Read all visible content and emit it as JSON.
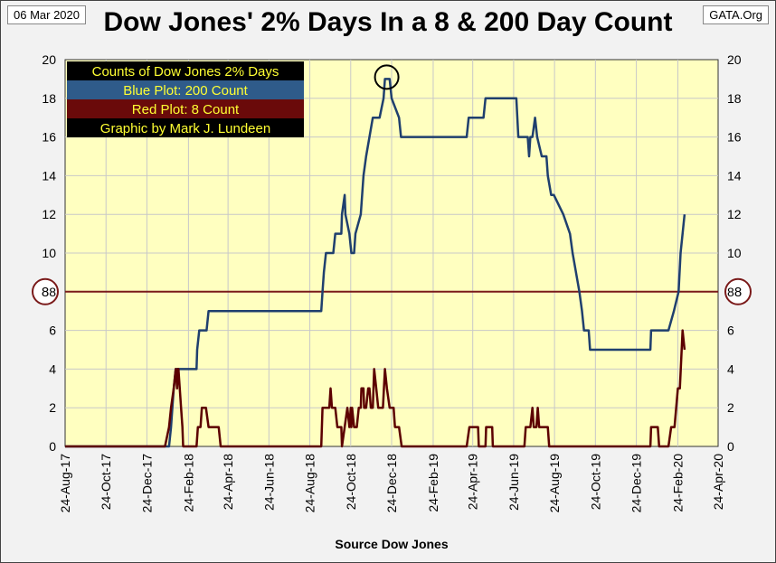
{
  "header": {
    "date": "06 Mar 2020",
    "source": "GATA.Org"
  },
  "chart_data": {
    "type": "line",
    "title": "Dow Jones' 2% Days In a 8 & 200 Day Count",
    "xlabel": "Source Dow Jones",
    "ylabel": "",
    "ylim": [
      0,
      20
    ],
    "yticks": [
      0,
      2,
      4,
      6,
      8,
      10,
      12,
      14,
      16,
      18,
      20
    ],
    "xticks": [
      "24-Aug-17",
      "24-Oct-17",
      "24-Dec-17",
      "24-Feb-18",
      "24-Apr-18",
      "24-Jun-18",
      "24-Aug-18",
      "24-Oct-18",
      "24-Dec-18",
      "24-Feb-19",
      "24-Apr-19",
      "24-Jun-19",
      "24-Aug-19",
      "24-Oct-19",
      "24-Dec-19",
      "24-Feb-20",
      "24-Apr-20"
    ],
    "xlim": [
      "2017-08-24",
      "2020-04-24"
    ],
    "grid": true,
    "legend": [
      {
        "text": "Counts of Dow Jones 2% Days",
        "bg": "#000000",
        "fg": "#ffff33"
      },
      {
        "text": "Blue Plot: 200 Count",
        "bg": "#2f5b8a",
        "fg": "#ffff33"
      },
      {
        "text": "Red Plot:     8 Count",
        "bg": "#6a0a0a",
        "fg": "#ffff33"
      },
      {
        "text": "Graphic by Mark J. Lundeen",
        "bg": "#000000",
        "fg": "#ffff33"
      }
    ],
    "reference_line": {
      "value": 8,
      "label": "8",
      "color": "#7a1a1a"
    },
    "colors": {
      "plot_bg": "#ffffc0",
      "blue": "#1f3f6e",
      "red": "#5c0000",
      "grid": "#c8c8c8"
    },
    "series": [
      {
        "color": "#1f3f6e",
        "points": [
          [
            "2017-08-24",
            0
          ],
          [
            "2018-01-26",
            0
          ],
          [
            "2018-01-29",
            1
          ],
          [
            "2018-02-02",
            3
          ],
          [
            "2018-02-05",
            4
          ],
          [
            "2018-03-08",
            4
          ],
          [
            "2018-03-09",
            5
          ],
          [
            "2018-03-12",
            6
          ],
          [
            "2018-03-23",
            6
          ],
          [
            "2018-03-26",
            7
          ],
          [
            "2018-09-07",
            7
          ],
          [
            "2018-09-10",
            7
          ],
          [
            "2018-09-12",
            8
          ],
          [
            "2018-09-14",
            9
          ],
          [
            "2018-09-17",
            10
          ],
          [
            "2018-09-28",
            10
          ],
          [
            "2018-10-01",
            11
          ],
          [
            "2018-10-10",
            11
          ],
          [
            "2018-10-11",
            12
          ],
          [
            "2018-10-15",
            13
          ],
          [
            "2018-10-16",
            12
          ],
          [
            "2018-10-22",
            11
          ],
          [
            "2018-10-25",
            10
          ],
          [
            "2018-10-29",
            10
          ],
          [
            "2018-10-31",
            11
          ],
          [
            "2018-11-08",
            12
          ],
          [
            "2018-11-12",
            14
          ],
          [
            "2018-11-16",
            15
          ],
          [
            "2018-11-21",
            16
          ],
          [
            "2018-11-26",
            17
          ],
          [
            "2018-12-06",
            17
          ],
          [
            "2018-12-12",
            18
          ],
          [
            "2018-12-14",
            19
          ],
          [
            "2018-12-21",
            19
          ],
          [
            "2018-12-24",
            18
          ],
          [
            "2019-01-04",
            17
          ],
          [
            "2019-01-07",
            16
          ],
          [
            "2019-04-15",
            16
          ],
          [
            "2019-04-18",
            17
          ],
          [
            "2019-05-10",
            17
          ],
          [
            "2019-05-13",
            18
          ],
          [
            "2019-06-28",
            18
          ],
          [
            "2019-07-01",
            16
          ],
          [
            "2019-07-15",
            16
          ],
          [
            "2019-07-17",
            15
          ],
          [
            "2019-07-19",
            16
          ],
          [
            "2019-07-22",
            16
          ],
          [
            "2019-07-26",
            17
          ],
          [
            "2019-07-29",
            16
          ],
          [
            "2019-08-05",
            15
          ],
          [
            "2019-08-12",
            15
          ],
          [
            "2019-08-14",
            14
          ],
          [
            "2019-08-19",
            13
          ],
          [
            "2019-08-23",
            13
          ],
          [
            "2019-09-06",
            12
          ],
          [
            "2019-09-16",
            11
          ],
          [
            "2019-09-20",
            10
          ],
          [
            "2019-09-30",
            8
          ],
          [
            "2019-10-04",
            7
          ],
          [
            "2019-10-07",
            6
          ],
          [
            "2019-10-14",
            6
          ],
          [
            "2019-10-16",
            5
          ],
          [
            "2020-01-14",
            5
          ],
          [
            "2020-01-15",
            6
          ],
          [
            "2020-02-10",
            6
          ],
          [
            "2020-02-18",
            7
          ],
          [
            "2020-02-25",
            8
          ],
          [
            "2020-02-28",
            10
          ],
          [
            "2020-03-02",
            11
          ],
          [
            "2020-03-05",
            12
          ]
        ]
      },
      {
        "color": "#5c0000",
        "points": [
          [
            "2017-08-24",
            0
          ],
          [
            "2018-01-20",
            0
          ],
          [
            "2018-01-26",
            1
          ],
          [
            "2018-01-29",
            2
          ],
          [
            "2018-02-02",
            3
          ],
          [
            "2018-02-05",
            4
          ],
          [
            "2018-02-07",
            3
          ],
          [
            "2018-02-08",
            4
          ],
          [
            "2018-02-09",
            4
          ],
          [
            "2018-02-13",
            2
          ],
          [
            "2018-02-15",
            1
          ],
          [
            "2018-02-16",
            0
          ],
          [
            "2018-03-08",
            0
          ],
          [
            "2018-03-10",
            1
          ],
          [
            "2018-03-14",
            1
          ],
          [
            "2018-03-16",
            2
          ],
          [
            "2018-03-22",
            2
          ],
          [
            "2018-03-26",
            1
          ],
          [
            "2018-04-04",
            1
          ],
          [
            "2018-04-10",
            1
          ],
          [
            "2018-04-13",
            0
          ],
          [
            "2018-09-10",
            0
          ],
          [
            "2018-09-12",
            2
          ],
          [
            "2018-09-22",
            2
          ],
          [
            "2018-09-24",
            3
          ],
          [
            "2018-09-26",
            2
          ],
          [
            "2018-10-01",
            2
          ],
          [
            "2018-10-04",
            1
          ],
          [
            "2018-10-10",
            1
          ],
          [
            "2018-10-11",
            0
          ],
          [
            "2018-10-15",
            1
          ],
          [
            "2018-10-19",
            2
          ],
          [
            "2018-10-22",
            1
          ],
          [
            "2018-10-24",
            2
          ],
          [
            "2018-10-25",
            1
          ],
          [
            "2018-10-26",
            2
          ],
          [
            "2018-10-29",
            1
          ],
          [
            "2018-11-02",
            1
          ],
          [
            "2018-11-05",
            2
          ],
          [
            "2018-11-08",
            2
          ],
          [
            "2018-11-09",
            3
          ],
          [
            "2018-11-12",
            3
          ],
          [
            "2018-11-13",
            2
          ],
          [
            "2018-11-16",
            2
          ],
          [
            "2018-11-19",
            3
          ],
          [
            "2018-11-21",
            3
          ],
          [
            "2018-11-23",
            2
          ],
          [
            "2018-11-26",
            2
          ],
          [
            "2018-11-28",
            4
          ],
          [
            "2018-12-01",
            3
          ],
          [
            "2018-12-04",
            2
          ],
          [
            "2018-12-07",
            2
          ],
          [
            "2018-12-11",
            2
          ],
          [
            "2018-12-14",
            4
          ],
          [
            "2018-12-17",
            3
          ],
          [
            "2018-12-21",
            2
          ],
          [
            "2018-12-27",
            2
          ],
          [
            "2018-12-29",
            1
          ],
          [
            "2019-01-04",
            1
          ],
          [
            "2019-01-08",
            0
          ],
          [
            "2019-04-15",
            0
          ],
          [
            "2019-04-19",
            1
          ],
          [
            "2019-05-02",
            1
          ],
          [
            "2019-05-03",
            0
          ],
          [
            "2019-05-13",
            0
          ],
          [
            "2019-05-14",
            1
          ],
          [
            "2019-05-23",
            1
          ],
          [
            "2019-05-24",
            0
          ],
          [
            "2019-07-10",
            0
          ],
          [
            "2019-07-12",
            1
          ],
          [
            "2019-07-19",
            1
          ],
          [
            "2019-07-22",
            2
          ],
          [
            "2019-07-24",
            1
          ],
          [
            "2019-07-28",
            1
          ],
          [
            "2019-07-30",
            2
          ],
          [
            "2019-08-01",
            1
          ],
          [
            "2019-08-14",
            1
          ],
          [
            "2019-08-16",
            0
          ],
          [
            "2020-01-14",
            0
          ],
          [
            "2020-01-15",
            1
          ],
          [
            "2020-01-25",
            1
          ],
          [
            "2020-01-27",
            0
          ],
          [
            "2020-02-10",
            0
          ],
          [
            "2020-02-14",
            1
          ],
          [
            "2020-02-19",
            1
          ],
          [
            "2020-02-24",
            3
          ],
          [
            "2020-02-27",
            3
          ],
          [
            "2020-03-02",
            6
          ],
          [
            "2020-03-05",
            5
          ]
        ]
      }
    ]
  }
}
